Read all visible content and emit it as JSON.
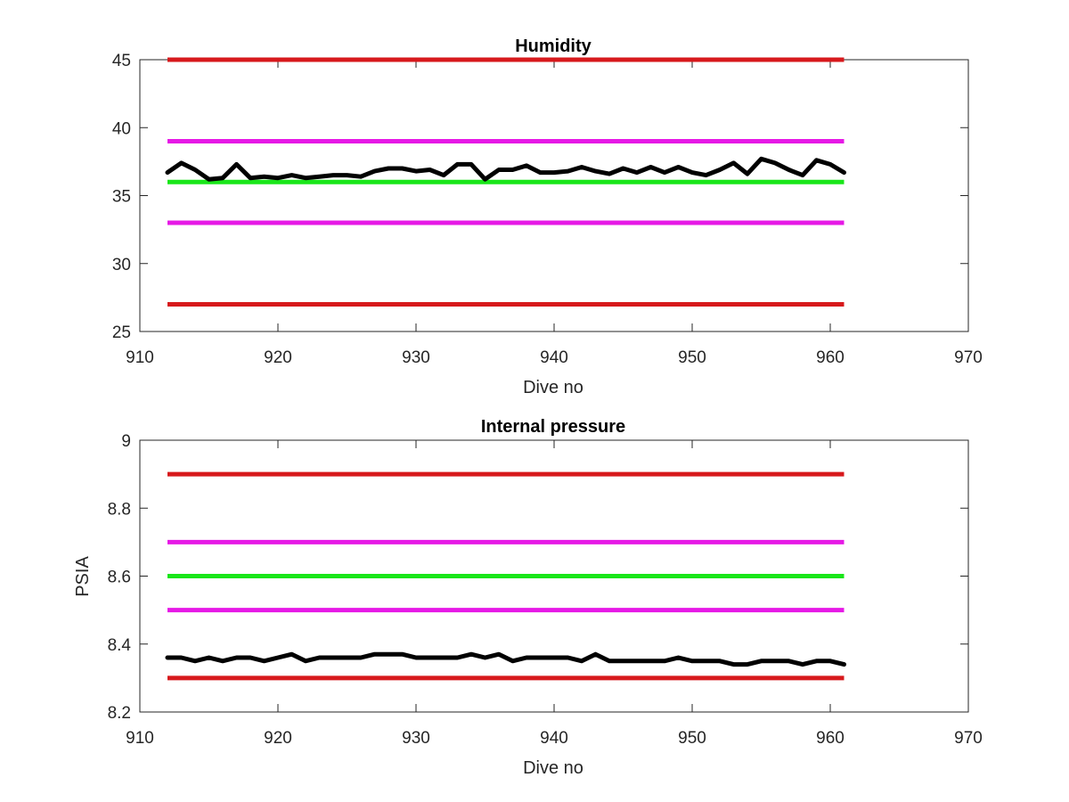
{
  "chart_data": [
    {
      "type": "line",
      "title": "Humidity",
      "xlabel": "Dive no",
      "ylabel": "",
      "xlim": [
        910,
        970
      ],
      "ylim": [
        25,
        45
      ],
      "xticks": [
        "910",
        "920",
        "930",
        "940",
        "950",
        "960",
        "970"
      ],
      "yticks": [
        "25",
        "30",
        "35",
        "40",
        "45"
      ],
      "limit_lines": [
        {
          "y": 45,
          "color": "#d7191c",
          "x": [
            912,
            961
          ]
        },
        {
          "y": 39,
          "color": "#e619e6",
          "x": [
            912,
            961
          ]
        },
        {
          "y": 36,
          "color": "#19e619",
          "x": [
            912,
            961
          ]
        },
        {
          "y": 33,
          "color": "#e619e6",
          "x": [
            912,
            961
          ]
        },
        {
          "y": 27,
          "color": "#d7191c",
          "x": [
            912,
            961
          ]
        }
      ],
      "series": [
        {
          "color": "#000000",
          "x": [
            912,
            913,
            914,
            915,
            916,
            917,
            918,
            919,
            920,
            921,
            922,
            923,
            924,
            925,
            926,
            927,
            928,
            929,
            930,
            931,
            932,
            933,
            934,
            935,
            936,
            937,
            938,
            939,
            940,
            941,
            942,
            943,
            944,
            945,
            946,
            947,
            948,
            949,
            950,
            951,
            952,
            953,
            954,
            955,
            956,
            957,
            958,
            959,
            960,
            961
          ],
          "y": [
            36.7,
            37.4,
            36.9,
            36.2,
            36.3,
            37.3,
            36.3,
            36.4,
            36.3,
            36.5,
            36.3,
            36.4,
            36.5,
            36.5,
            36.4,
            36.8,
            37.0,
            37.0,
            36.8,
            36.9,
            36.5,
            37.3,
            37.3,
            36.2,
            36.9,
            36.9,
            37.2,
            36.7,
            36.7,
            36.8,
            37.1,
            36.8,
            36.6,
            37.0,
            36.7,
            37.1,
            36.7,
            37.1,
            36.7,
            36.5,
            36.9,
            37.4,
            36.6,
            37.7,
            37.4,
            36.9,
            36.5,
            37.6,
            37.3,
            36.7
          ]
        }
      ]
    },
    {
      "type": "line",
      "title": "Internal pressure",
      "xlabel": "Dive no",
      "ylabel": "PSIA",
      "xlim": [
        910,
        970
      ],
      "ylim": [
        8.2,
        9
      ],
      "xticks": [
        "910",
        "920",
        "930",
        "940",
        "950",
        "960",
        "970"
      ],
      "yticks": [
        "8.2",
        "8.4",
        "8.6",
        "8.8",
        "9"
      ],
      "limit_lines": [
        {
          "y": 8.9,
          "color": "#d7191c",
          "x": [
            912,
            961
          ]
        },
        {
          "y": 8.7,
          "color": "#e619e6",
          "x": [
            912,
            961
          ]
        },
        {
          "y": 8.6,
          "color": "#19e619",
          "x": [
            912,
            961
          ]
        },
        {
          "y": 8.5,
          "color": "#e619e6",
          "x": [
            912,
            961
          ]
        },
        {
          "y": 8.3,
          "color": "#d7191c",
          "x": [
            912,
            961
          ]
        }
      ],
      "series": [
        {
          "color": "#000000",
          "x": [
            912,
            913,
            914,
            915,
            916,
            917,
            918,
            919,
            920,
            921,
            922,
            923,
            924,
            925,
            926,
            927,
            928,
            929,
            930,
            931,
            932,
            933,
            934,
            935,
            936,
            937,
            938,
            939,
            940,
            941,
            942,
            943,
            944,
            945,
            946,
            947,
            948,
            949,
            950,
            951,
            952,
            953,
            954,
            955,
            956,
            957,
            958,
            959,
            960,
            961
          ],
          "y": [
            8.36,
            8.36,
            8.35,
            8.36,
            8.35,
            8.36,
            8.36,
            8.35,
            8.36,
            8.37,
            8.35,
            8.36,
            8.36,
            8.36,
            8.36,
            8.37,
            8.37,
            8.37,
            8.36,
            8.36,
            8.36,
            8.36,
            8.37,
            8.36,
            8.37,
            8.35,
            8.36,
            8.36,
            8.36,
            8.36,
            8.35,
            8.37,
            8.35,
            8.35,
            8.35,
            8.35,
            8.35,
            8.36,
            8.35,
            8.35,
            8.35,
            8.34,
            8.34,
            8.35,
            8.35,
            8.35,
            8.34,
            8.35,
            8.35,
            8.34
          ]
        }
      ]
    }
  ]
}
